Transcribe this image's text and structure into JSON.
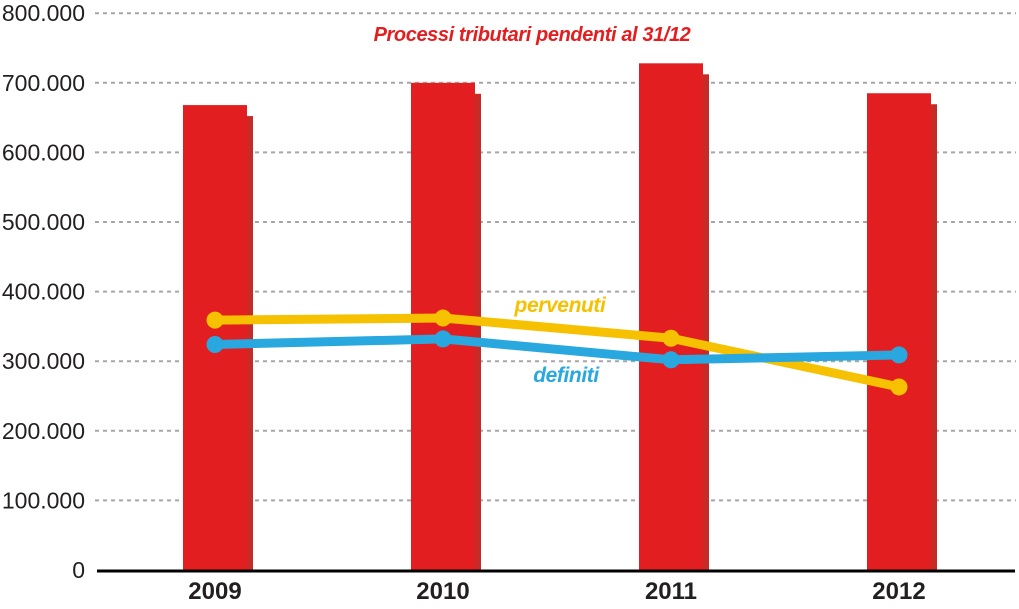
{
  "chart_data": {
    "type": "bar-line-combo",
    "title": "Processi tributari pendenti al 31/12",
    "categories": [
      "2009",
      "2010",
      "2011",
      "2012"
    ],
    "bar_series": {
      "name": "Processi tributari pendenti al 31/12",
      "values": [
        668000,
        700000,
        728000,
        685000
      ]
    },
    "line_series": [
      {
        "name": "pervenuti",
        "values": [
          359000,
          362000,
          333000,
          263000
        ]
      },
      {
        "name": "definiti",
        "values": [
          324000,
          332000,
          302000,
          309000
        ]
      }
    ],
    "ylim": [
      0,
      800000
    ],
    "y_ticks": [
      800000,
      700000,
      600000,
      500000,
      400000,
      300000,
      200000,
      100000,
      0
    ],
    "y_tick_labels": [
      "800.000",
      "700.000",
      "600.000",
      "500.000",
      "400.000",
      "300.000",
      "200.000",
      "100.000",
      "0"
    ],
    "grid": "horizontal-dotted",
    "legend_position": "inline-labels"
  },
  "colors": {
    "bar_red": "#e31e20",
    "bar_shadow_red": "#c62b28",
    "line_yellow": "#f6c100",
    "line_blue": "#29a8df",
    "grid_gray": "#a6a6a6",
    "text": "#231f20",
    "axis_black": "#000000",
    "title_red": "#e31e20"
  }
}
